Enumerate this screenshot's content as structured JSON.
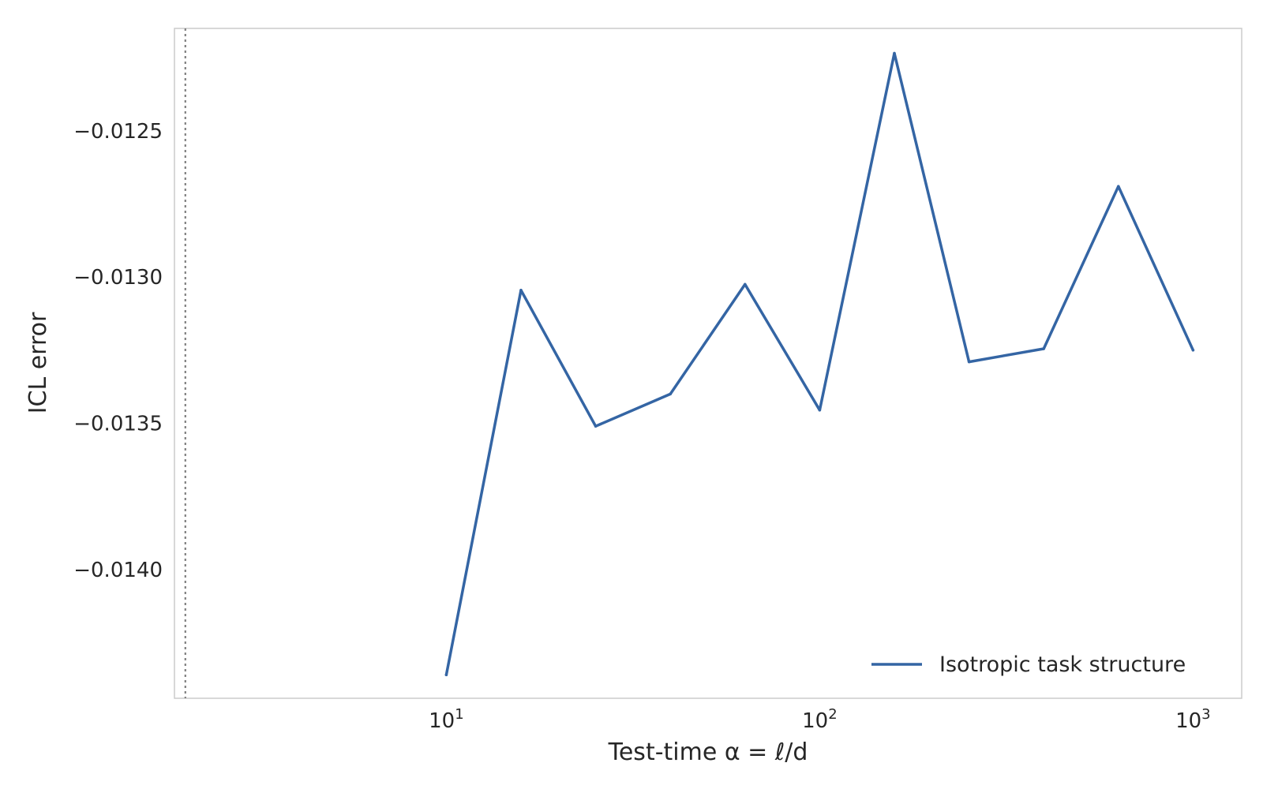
{
  "chart_data": {
    "type": "line",
    "x_scale": "log",
    "xlabel": "Test-time α = ℓ/d",
    "ylabel": "ICL error",
    "xlim": [
      1.87,
      1350
    ],
    "ylim": [
      -0.01444,
      -0.01215
    ],
    "x_ticks": [
      {
        "value": 10,
        "base": "10",
        "exp": "1"
      },
      {
        "value": 100,
        "base": "10",
        "exp": "2"
      },
      {
        "value": 1000,
        "base": "10",
        "exp": "3"
      }
    ],
    "y_ticks": [
      {
        "value": -0.0125,
        "label": "−0.0125"
      },
      {
        "value": -0.013,
        "label": "−0.0130"
      },
      {
        "value": -0.0135,
        "label": "−0.0135"
      },
      {
        "value": -0.014,
        "label": "−0.0140"
      }
    ],
    "reference_line": {
      "x": 2,
      "style": "dotted",
      "color": "#808080"
    },
    "grid": false,
    "legend_position": "lower-right",
    "series": [
      {
        "name": "Isotropic task structure",
        "color": "#3465a4",
        "x": [
          10,
          15.85,
          25.12,
          39.81,
          63.1,
          100,
          158.5,
          251.2,
          398.1,
          631,
          1000
        ],
        "y": [
          -0.01436,
          -0.013045,
          -0.01351,
          -0.0134,
          -0.013025,
          -0.013455,
          -0.012235,
          -0.01329,
          -0.013245,
          -0.01269,
          -0.01325
        ]
      }
    ]
  }
}
